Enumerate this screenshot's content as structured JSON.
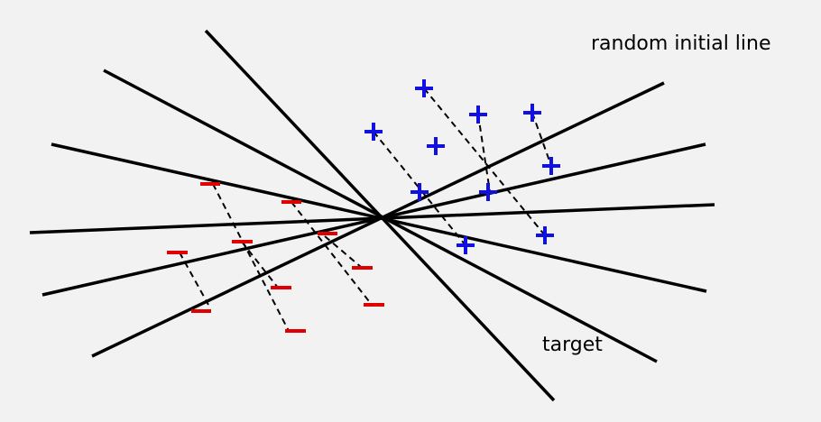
{
  "labels": {
    "initial_line": "random initial line",
    "target": "target"
  },
  "marks": {
    "plus_symbol": "+",
    "minus_symbol": "−"
  },
  "colors": {
    "background": "#f2f2f2",
    "line": "#000000",
    "plus": "#1010e0",
    "minus": "#e00000",
    "dashed": "#000000"
  }
}
